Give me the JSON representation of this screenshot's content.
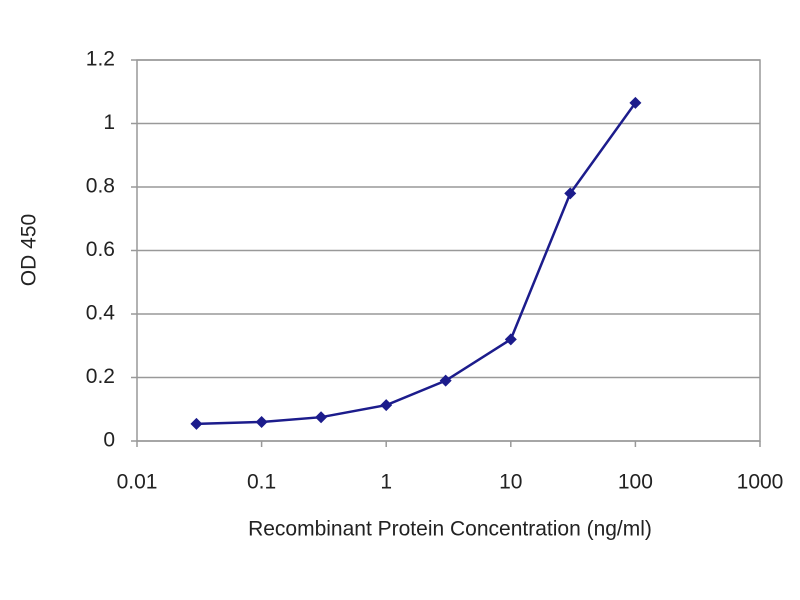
{
  "chart_data": {
    "type": "line",
    "x_label": "Recombinant Protein Concentration (ng/ml)",
    "y_label": "OD 450",
    "xscale": "log",
    "x": [
      0.03,
      0.1,
      0.3,
      1,
      3,
      10,
      30,
      100
    ],
    "series": [
      {
        "color": "#1c1c8c",
        "values": [
          0.054,
          0.06,
          0.075,
          0.113,
          0.19,
          0.32,
          0.78,
          1.065
        ]
      }
    ],
    "xlim": [
      0.01,
      1000
    ],
    "xticks": [
      0.01,
      0.1,
      1,
      10,
      100,
      1000
    ],
    "ylim": [
      0,
      1.2
    ],
    "yticks": [
      0,
      0.2,
      0.4,
      0.6,
      0.8,
      1,
      1.2
    ],
    "grid": true
  }
}
